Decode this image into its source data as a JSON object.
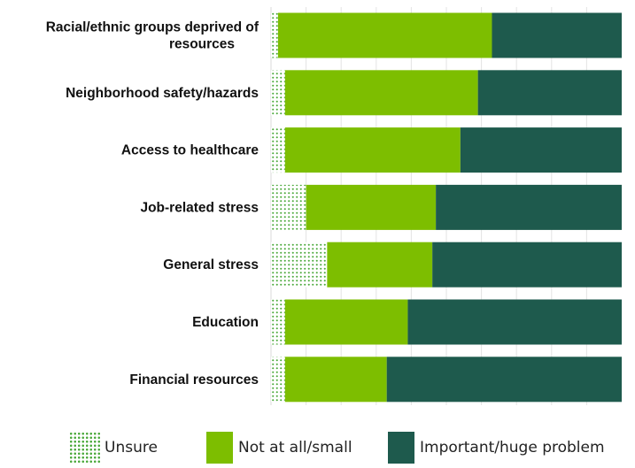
{
  "chart_data": {
    "type": "bar",
    "orientation": "horizontal",
    "stacked": true,
    "percent": true,
    "xlim": [
      0,
      100
    ],
    "grid": true,
    "legend_position": "bottom",
    "categories": [
      "Racial/ethnic groups deprived of resources",
      "Neighborhood safety/hazards",
      "Access to healthcare",
      "Job-related stress",
      "General stress",
      "Education",
      "Financial resources"
    ],
    "category_lines": [
      [
        "Racial/ethnic groups deprived of",
        "resources"
      ],
      [
        "Neighborhood safety/hazards"
      ],
      [
        "Access to healthcare"
      ],
      [
        "Job-related stress"
      ],
      [
        "General stress"
      ],
      [
        "Education"
      ],
      [
        "Financial resources"
      ]
    ],
    "series": [
      {
        "name": "Unsure",
        "color": "#4aa83a",
        "pattern": "dots",
        "values": [
          2,
          4,
          4,
          10,
          16,
          4,
          4
        ]
      },
      {
        "name": "Not at all/small",
        "color": "#7dbe00",
        "values": [
          61,
          55,
          50,
          37,
          30,
          35,
          29
        ]
      },
      {
        "name": "Important/huge problem",
        "color": "#1e5a4d",
        "values": [
          37,
          41,
          46,
          53,
          54,
          61,
          67
        ]
      }
    ]
  }
}
